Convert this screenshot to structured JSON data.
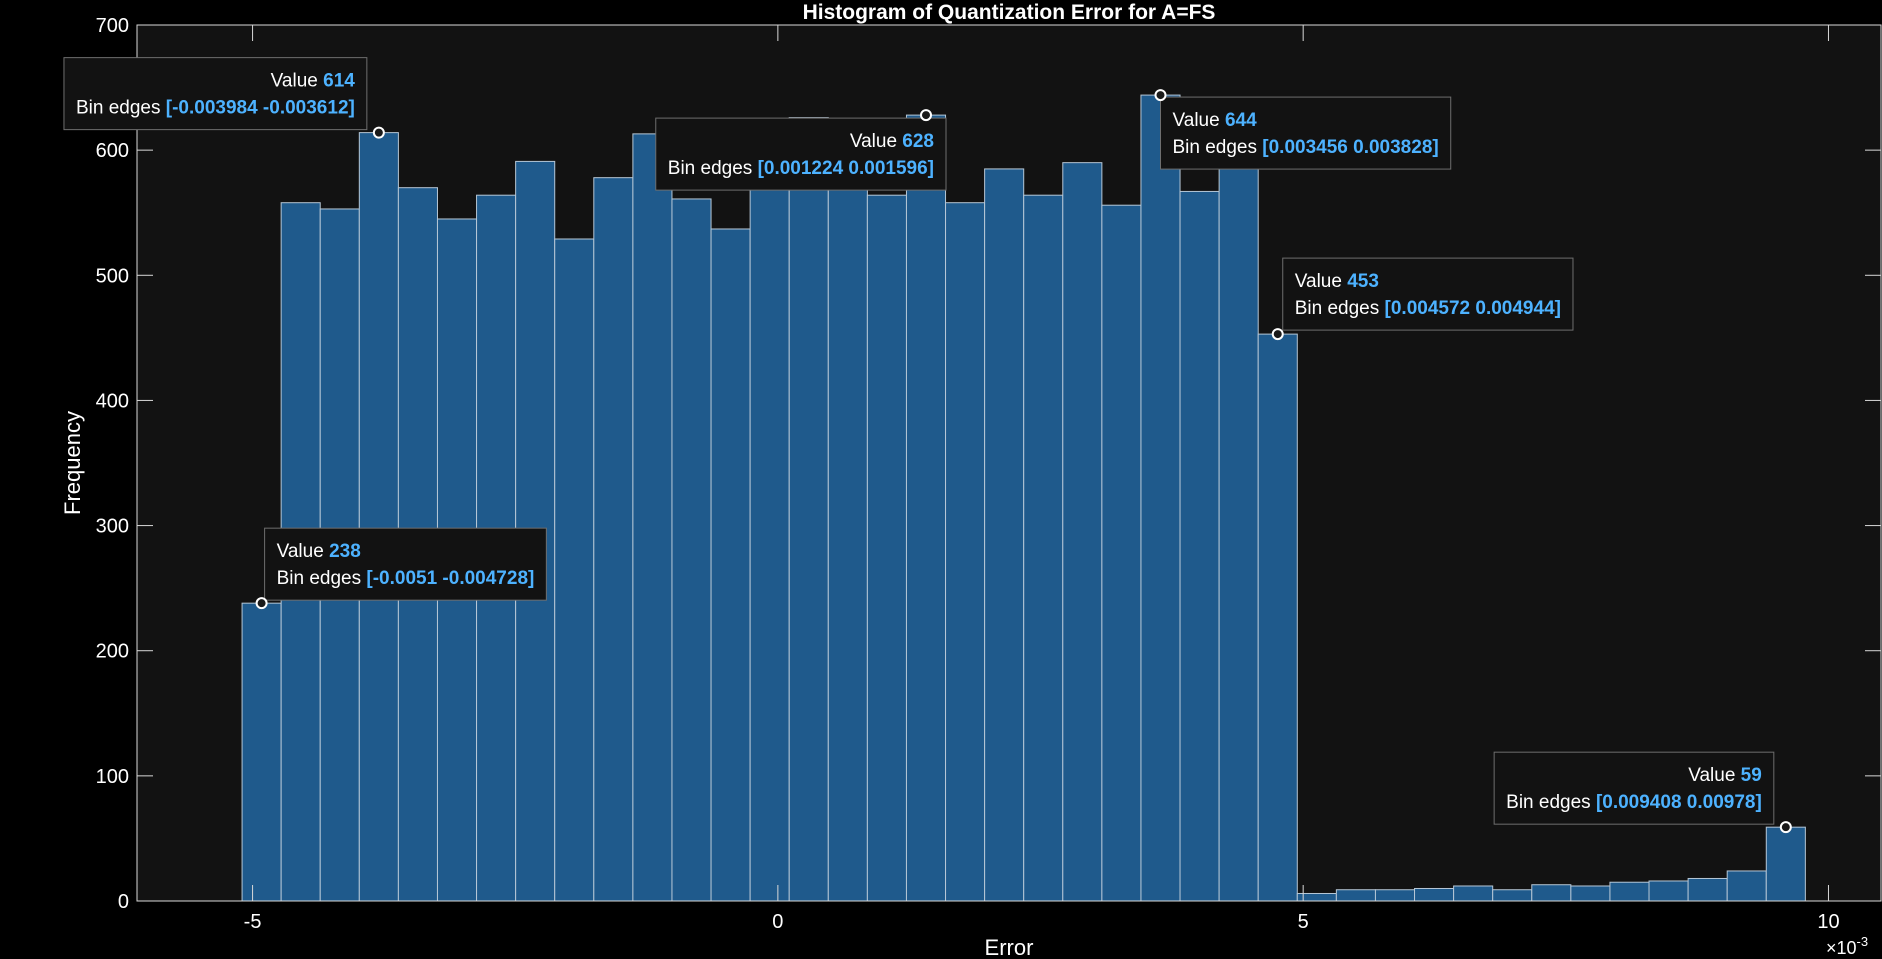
{
  "chart_data": {
    "type": "histogram",
    "title": "Histogram of Quantization Error for A=FS",
    "xlabel": "Error",
    "ylabel": "Frequency",
    "x_exponent_label": "×10",
    "x_exponent_power": "-3",
    "x_scale": 0.001,
    "xlim": [
      -0.0061,
      0.0105
    ],
    "ylim": [
      0,
      700
    ],
    "x_ticks": [
      -0.005,
      0,
      0.005,
      0.01
    ],
    "x_tick_labels": [
      "-5",
      "0",
      "5",
      "10"
    ],
    "y_ticks": [
      0,
      100,
      200,
      300,
      400,
      500,
      600,
      700
    ],
    "y_tick_labels": [
      "0",
      "100",
      "200",
      "300",
      "400",
      "500",
      "600",
      "700"
    ],
    "grid": false,
    "bin_start": -0.0051,
    "bin_width": 0.000372,
    "values": [
      238,
      558,
      553,
      614,
      570,
      545,
      564,
      591,
      529,
      578,
      613,
      561,
      537,
      607,
      626,
      614,
      564,
      628,
      558,
      585,
      564,
      590,
      556,
      644,
      567,
      610,
      453,
      6,
      9,
      9,
      10,
      12,
      9,
      13,
      12,
      15,
      16,
      18,
      24,
      59
    ],
    "colors": {
      "background": "#000000",
      "plot_background": "#121212",
      "bar_fill": "#1f5a8c",
      "bar_edge": "#b6c7d6",
      "axis": "#d9d9d9",
      "text": "#ffffff",
      "datatip_value": "#4db2ff",
      "datatip_bg": "#121212",
      "datatip_border": "#6e6e6e"
    },
    "datatips": [
      {
        "value_label": "Value",
        "value": "614",
        "edges_label": "Bin edges",
        "edges": "[-0.003984  -0.003612]",
        "bin": 3,
        "align": "right"
      },
      {
        "value_label": "Value",
        "value": "628",
        "edges_label": "Bin edges",
        "edges": "[0.001224  0.001596]",
        "bin": 17,
        "align": "right"
      },
      {
        "value_label": "Value",
        "value": "644",
        "edges_label": "Bin edges",
        "edges": "[0.003456  0.003828]",
        "bin": 23,
        "align": "left"
      },
      {
        "value_label": "Value",
        "value": "453",
        "edges_label": "Bin edges",
        "edges": "[0.004572  0.004944]",
        "bin": 26,
        "align": "left"
      },
      {
        "value_label": "Value",
        "value": "238",
        "edges_label": "Bin edges",
        "edges": "[-0.0051  -0.004728]",
        "bin": 0,
        "align": "left"
      },
      {
        "value_label": "Value",
        "value": "59",
        "edges_label": "Bin edges",
        "edges": "[0.009408  0.00978]",
        "bin": 39,
        "align": "right"
      }
    ]
  }
}
